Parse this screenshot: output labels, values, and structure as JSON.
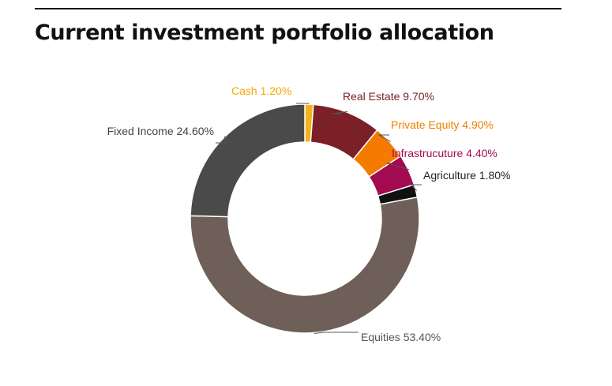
{
  "chart_data": {
    "type": "pie",
    "variant": "donut",
    "title": "Current investment portfolio allocation",
    "categories": [
      "Cash",
      "Real Estate",
      "Private Equity",
      "Infrastrucuture",
      "Agriculture",
      "Equities",
      "Fixed Income"
    ],
    "values": [
      1.2,
      9.7,
      4.9,
      4.4,
      1.8,
      53.4,
      24.6
    ],
    "unit": "%",
    "data_labels": [
      "Cash 1.20%",
      "Real Estate 9.70%",
      "Private Equity 4.90%",
      "Infrastrucuture 4.40%",
      "Agriculture 1.80%",
      "Equities 53.40%",
      "Fixed Income 24.60%"
    ],
    "colors": [
      "#f5b21c",
      "#7b2027",
      "#f47b00",
      "#a30a4f",
      "#111111",
      "#6e6058",
      "#4a4a4a"
    ],
    "label_colors": [
      "#f5a800",
      "#7b2027",
      "#f07f00",
      "#a30a4f",
      "#222222",
      "#555555",
      "#444444"
    ],
    "legend": "none"
  }
}
